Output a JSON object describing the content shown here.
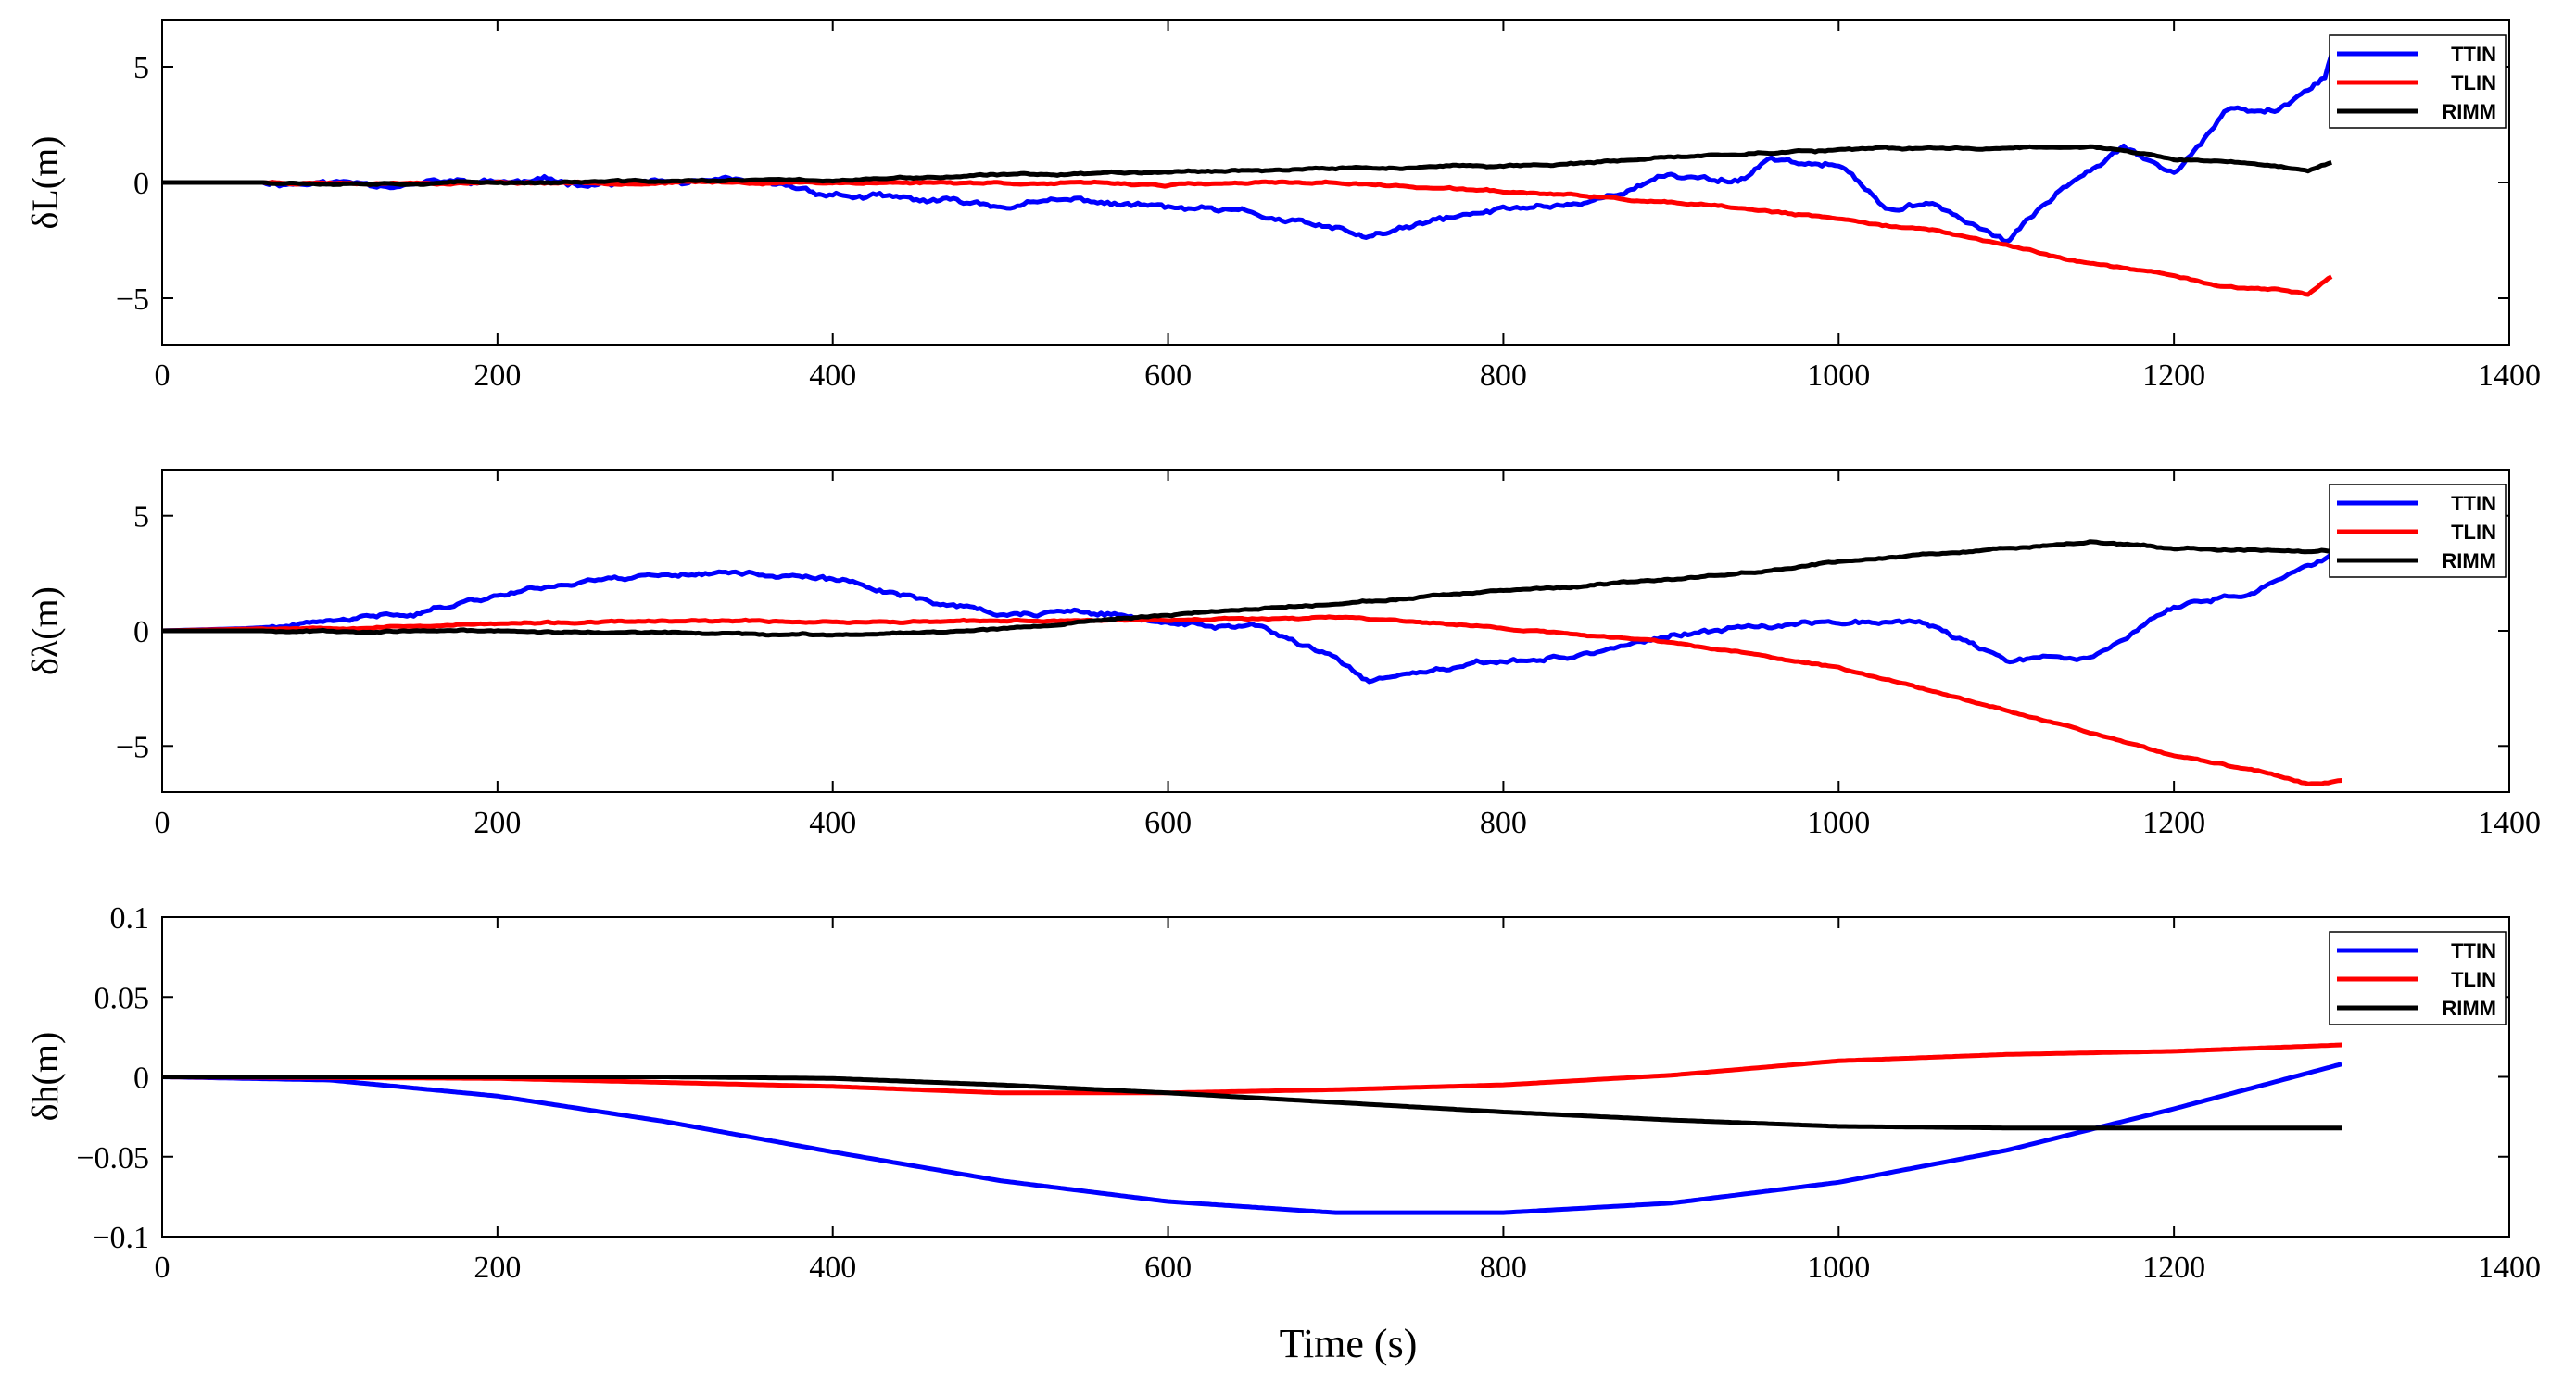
{
  "x_axis_title": "Time (s)",
  "colors": {
    "TTIN": "#0000ff",
    "TLIN": "#ff0000",
    "RIMM": "#000000"
  },
  "chart_data": [
    {
      "type": "line",
      "ylabel": "δL(m)",
      "xlim": [
        0,
        1400
      ],
      "ylim": [
        -7,
        7
      ],
      "xticks": [
        0,
        200,
        400,
        600,
        800,
        1000,
        1200,
        1400
      ],
      "xtick_labels": [
        "0",
        "200",
        "400",
        "600",
        "800",
        "1000",
        "1200",
        "1400"
      ],
      "yticks": [
        -5,
        0,
        5
      ],
      "ytick_labels": [
        "−5",
        "0",
        "5"
      ],
      "legend": [
        "TTIN",
        "TLIN",
        "RIMM"
      ],
      "legend_position": "top-right",
      "series": [
        {
          "name": "TTIN",
          "color": "#0000ff",
          "noise": 0.25,
          "seed": 11,
          "x": [
            0,
            100,
            200,
            300,
            350,
            400,
            450,
            500,
            550,
            600,
            650,
            700,
            720,
            760,
            800,
            850,
            900,
            940,
            960,
            1000,
            1030,
            1060,
            1100,
            1140,
            1170,
            1200,
            1230,
            1260,
            1290,
            1295
          ],
          "y": [
            0,
            0,
            0,
            0,
            -0.1,
            -0.5,
            -0.8,
            -1.0,
            -0.8,
            -1.1,
            -1.4,
            -2.1,
            -2.4,
            -1.7,
            -1.2,
            -0.8,
            0.3,
            0.1,
            1.1,
            0.7,
            -1.2,
            -1.0,
            -2.6,
            0.2,
            1.8,
            0.4,
            3.0,
            3.0,
            4.6,
            6.0
          ]
        },
        {
          "name": "TLIN",
          "color": "#ff0000",
          "noise": 0.08,
          "seed": 23,
          "x": [
            0,
            200,
            400,
            500,
            600,
            700,
            750,
            800,
            850,
            900,
            950,
            1000,
            1050,
            1100,
            1150,
            1200,
            1230,
            1260,
            1280,
            1295
          ],
          "y": [
            0,
            0,
            0,
            0,
            -0.1,
            0,
            -0.2,
            -0.4,
            -0.6,
            -0.9,
            -1.2,
            -1.6,
            -2.0,
            -2.7,
            -3.5,
            -4.0,
            -4.5,
            -4.6,
            -4.8,
            -4.0
          ]
        },
        {
          "name": "RIMM",
          "color": "#000000",
          "noise": 0.08,
          "seed": 37,
          "x": [
            0,
            200,
            400,
            500,
            600,
            700,
            800,
            870,
            950,
            1000,
            1100,
            1150,
            1200,
            1250,
            1280,
            1295
          ],
          "y": [
            0,
            0,
            0.1,
            0.3,
            0.5,
            0.6,
            0.7,
            0.9,
            1.3,
            1.4,
            1.5,
            1.6,
            1.0,
            0.8,
            0.5,
            0.9
          ]
        }
      ]
    },
    {
      "type": "line",
      "ylabel": "δλ(m)",
      "xlim": [
        0,
        1400
      ],
      "ylim": [
        -7,
        7
      ],
      "xticks": [
        0,
        200,
        400,
        600,
        800,
        1000,
        1200,
        1400
      ],
      "xtick_labels": [
        "0",
        "200",
        "400",
        "600",
        "800",
        "1000",
        "1200",
        "1400"
      ],
      "yticks": [
        -5,
        0,
        5
      ],
      "ytick_labels": [
        "−5",
        "0",
        "5"
      ],
      "legend": [
        "TTIN",
        "TLIN",
        "RIMM"
      ],
      "legend_position": "top-right",
      "series": [
        {
          "name": "TTIN",
          "color": "#0000ff",
          "noise": 0.2,
          "seed": 41,
          "x": [
            0,
            50,
            100,
            150,
            200,
            250,
            300,
            350,
            400,
            450,
            500,
            550,
            600,
            650,
            700,
            720,
            760,
            800,
            850,
            900,
            950,
            1000,
            1050,
            1100,
            1150,
            1200,
            1250,
            1300
          ],
          "y": [
            0,
            0.1,
            0.3,
            0.8,
            1.6,
            2.2,
            2.5,
            2.6,
            2.2,
            1.5,
            0.7,
            0.8,
            0.3,
            0.2,
            -1.3,
            -2.2,
            -1.8,
            -1.4,
            -1.0,
            -0.2,
            0.1,
            0.5,
            0.4,
            -1.3,
            -1.2,
            1.0,
            1.8,
            3.5
          ]
        },
        {
          "name": "TLIN",
          "color": "#ff0000",
          "noise": 0.07,
          "seed": 53,
          "x": [
            0,
            200,
            300,
            400,
            500,
            600,
            700,
            750,
            800,
            900,
            1000,
            1100,
            1150,
            1200,
            1250,
            1280,
            1300
          ],
          "y": [
            0,
            0.3,
            0.4,
            0.4,
            0.4,
            0.5,
            0.6,
            0.4,
            0.1,
            -0.5,
            -1.6,
            -3.4,
            -4.4,
            -5.4,
            -6.1,
            -6.6,
            -6.5
          ]
        },
        {
          "name": "RIMM",
          "color": "#000000",
          "noise": 0.07,
          "seed": 67,
          "x": [
            0,
            200,
            300,
            400,
            500,
            600,
            700,
            800,
            900,
            1000,
            1100,
            1150,
            1200,
            1250,
            1300
          ],
          "y": [
            0,
            0,
            -0.1,
            -0.2,
            0.1,
            0.7,
            1.2,
            1.7,
            2.2,
            3.0,
            3.6,
            3.9,
            3.6,
            3.5,
            3.5
          ]
        }
      ]
    },
    {
      "type": "line",
      "ylabel": "δh(m)",
      "xlim": [
        0,
        1400
      ],
      "ylim": [
        -0.1,
        0.1
      ],
      "xticks": [
        0,
        200,
        400,
        600,
        800,
        1000,
        1200,
        1400
      ],
      "xtick_labels": [
        "0",
        "200",
        "400",
        "600",
        "800",
        "1000",
        "1200",
        "1400"
      ],
      "yticks": [
        -0.1,
        -0.05,
        0,
        0.05,
        0.1
      ],
      "ytick_labels": [
        "−0.1",
        "−0.05",
        "0",
        "0.05",
        "0.1"
      ],
      "legend": [
        "TTIN",
        "TLIN",
        "RIMM"
      ],
      "legend_position": "top-right",
      "series": [
        {
          "name": "TTIN",
          "color": "#0000ff",
          "noise": 0,
          "seed": 1,
          "x": [
            0,
            100,
            200,
            300,
            400,
            500,
            600,
            700,
            800,
            900,
            1000,
            1100,
            1200,
            1300
          ],
          "y": [
            0,
            -0.002,
            -0.012,
            -0.028,
            -0.047,
            -0.065,
            -0.078,
            -0.085,
            -0.085,
            -0.079,
            -0.066,
            -0.046,
            -0.02,
            0.008
          ]
        },
        {
          "name": "TLIN",
          "color": "#ff0000",
          "noise": 0,
          "seed": 2,
          "x": [
            0,
            200,
            400,
            500,
            600,
            700,
            800,
            900,
            1000,
            1100,
            1200,
            1300
          ],
          "y": [
            0,
            -0.001,
            -0.006,
            -0.01,
            -0.01,
            -0.008,
            -0.005,
            0.001,
            0.01,
            0.014,
            0.016,
            0.02
          ]
        },
        {
          "name": "RIMM",
          "color": "#000000",
          "noise": 0,
          "seed": 3,
          "x": [
            0,
            200,
            300,
            400,
            500,
            600,
            700,
            800,
            900,
            1000,
            1100,
            1200,
            1300
          ],
          "y": [
            0,
            0,
            0,
            -0.001,
            -0.005,
            -0.01,
            -0.016,
            -0.022,
            -0.027,
            -0.031,
            -0.032,
            -0.032,
            -0.032
          ]
        }
      ]
    }
  ]
}
